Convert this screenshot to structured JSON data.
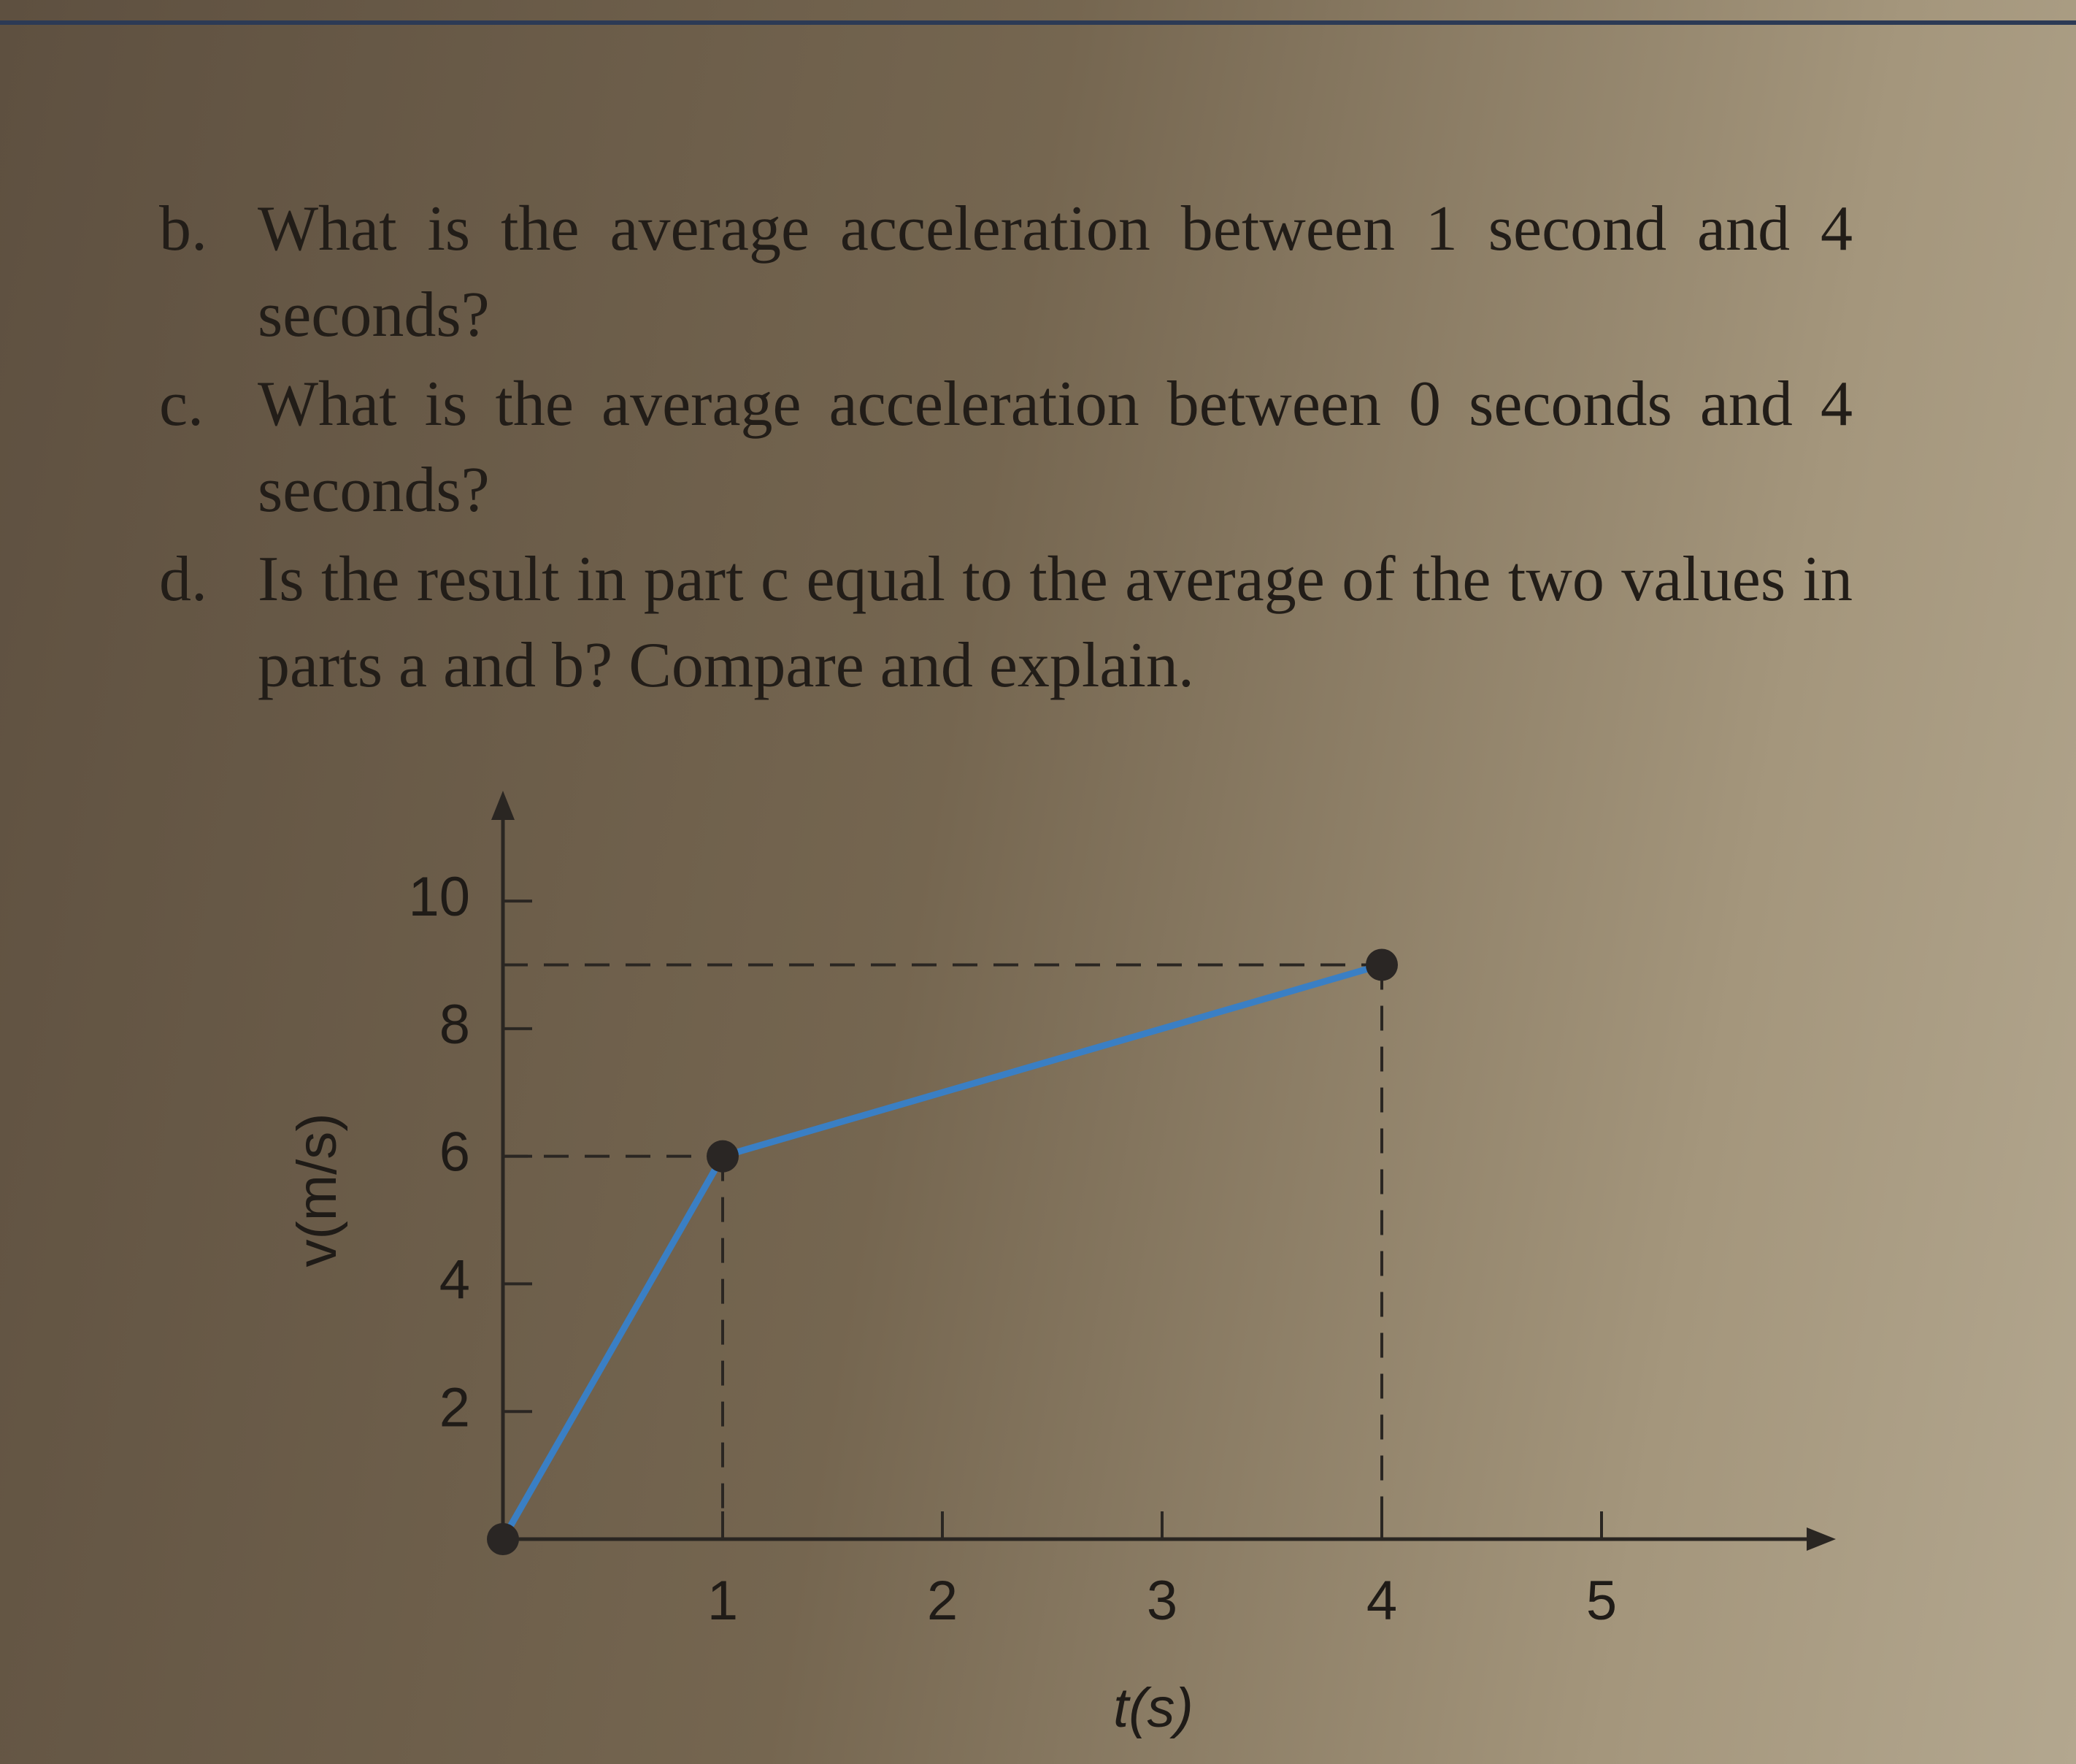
{
  "questions": [
    {
      "label": "b.",
      "text": "What is the average acceleration between 1 second and 4 seconds?"
    },
    {
      "label": "c.",
      "text": "What is the average acceleration between 0 seconds and 4 seconds?"
    },
    {
      "label": "d.",
      "text": "Is the result in part c equal to the average of the two values in parts a and b? Compare and explain."
    }
  ],
  "chart_data": {
    "type": "line",
    "x_label": "t(s)",
    "y_label": "v(m/s)",
    "x": [
      0,
      1,
      4
    ],
    "values": [
      0,
      6,
      9
    ],
    "color": "#3a7fc4",
    "xlim": [
      0,
      6
    ],
    "ylim": [
      0,
      11.5
    ],
    "xticks": [
      1,
      2,
      3,
      4,
      5
    ],
    "yticks": [
      2,
      4,
      6,
      8,
      10
    ]
  }
}
